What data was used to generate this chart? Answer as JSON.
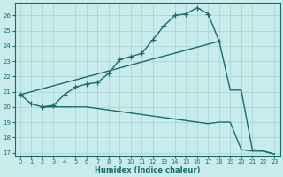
{
  "xlabel": "Humidex (Indice chaleur)",
  "xlim": [
    -0.5,
    23.5
  ],
  "ylim": [
    16.8,
    26.8
  ],
  "yticks": [
    17,
    18,
    19,
    20,
    21,
    22,
    23,
    24,
    25,
    26
  ],
  "xticks": [
    0,
    1,
    2,
    3,
    4,
    5,
    6,
    7,
    8,
    9,
    10,
    11,
    12,
    13,
    14,
    15,
    16,
    17,
    18,
    19,
    20,
    21,
    22,
    23
  ],
  "background_color": "#c8ecec",
  "grid_color": "#b0d8d8",
  "line_color": "#1a6b6b",
  "series": [
    {
      "x": [
        0,
        1,
        2,
        3,
        4,
        5,
        6,
        7,
        8,
        9,
        10,
        11,
        12,
        13,
        14,
        15,
        16,
        17,
        18
      ],
      "y": [
        20.8,
        20.2,
        20.0,
        20.1,
        20.8,
        21.3,
        21.5,
        21.6,
        22.2,
        23.1,
        23.3,
        23.5,
        24.4,
        25.3,
        26.0,
        26.1,
        26.5,
        26.1,
        24.3
      ],
      "marker": "+",
      "markersize": 4,
      "linewidth": 1.0
    },
    {
      "x": [
        0,
        18,
        19,
        20,
        21,
        22,
        23
      ],
      "y": [
        20.8,
        24.3,
        21.1,
        21.1,
        17.2,
        17.1,
        16.9
      ],
      "marker": null,
      "linewidth": 1.0
    },
    {
      "x": [
        2,
        3,
        4,
        5,
        6,
        7,
        8,
        9,
        10,
        11,
        12,
        13,
        14,
        15,
        16,
        17,
        18,
        19,
        20,
        21,
        22,
        23
      ],
      "y": [
        20.0,
        20.0,
        20.0,
        20.0,
        20.0,
        19.9,
        19.8,
        19.7,
        19.6,
        19.5,
        19.4,
        19.3,
        19.2,
        19.1,
        19.0,
        18.9,
        19.0,
        19.0,
        17.2,
        17.1,
        17.1,
        16.9
      ],
      "marker": null,
      "linewidth": 1.0
    }
  ]
}
